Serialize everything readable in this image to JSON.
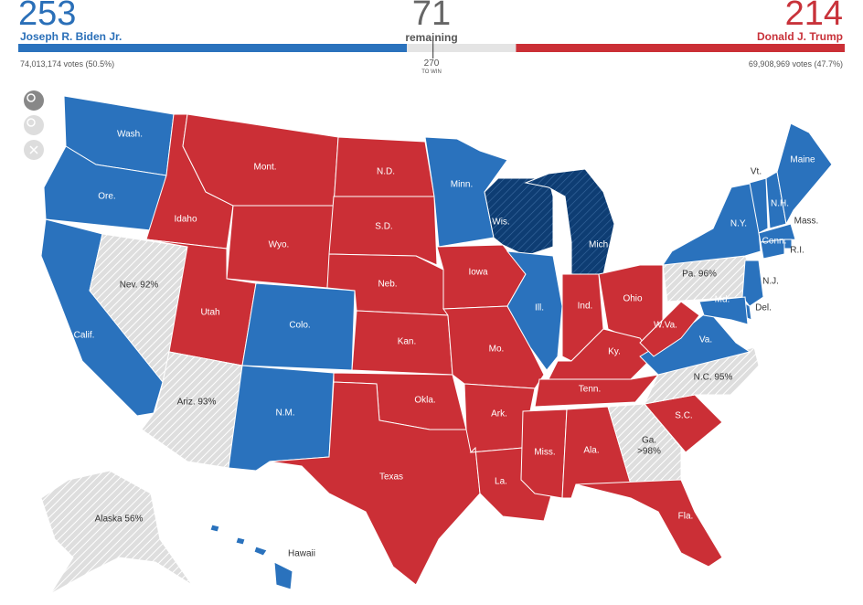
{
  "header": {
    "biden": {
      "electoral": 253,
      "name": "Joseph R. Biden Jr.",
      "votes": "74,013,174 votes (50.5%)"
    },
    "remaining": {
      "electoral": 71,
      "label": "remaining"
    },
    "trump": {
      "electoral": 214,
      "name": "Donald J. Trump",
      "votes": "69,908,969 votes (47.7%)"
    },
    "to_win": {
      "value": 270,
      "label": "TO WIN"
    }
  },
  "colors": {
    "biden": "#2a72bd",
    "trump": "#cb2f36",
    "uncalled": "#dedede",
    "biden-new": "#0e3d73"
  },
  "states": [
    {
      "name": "Wash.",
      "status": "biden"
    },
    {
      "name": "Ore.",
      "status": "biden"
    },
    {
      "name": "Calif.",
      "status": "biden"
    },
    {
      "name": "Nev. 92%",
      "status": "uncalled"
    },
    {
      "name": "Idaho",
      "status": "trump"
    },
    {
      "name": "Mont.",
      "status": "trump"
    },
    {
      "name": "Wyo.",
      "status": "trump"
    },
    {
      "name": "Utah",
      "status": "trump"
    },
    {
      "name": "Ariz. 93%",
      "status": "uncalled"
    },
    {
      "name": "Colo.",
      "status": "biden"
    },
    {
      "name": "N.M.",
      "status": "biden"
    },
    {
      "name": "N.D.",
      "status": "trump"
    },
    {
      "name": "S.D.",
      "status": "trump"
    },
    {
      "name": "Neb.",
      "status": "trump"
    },
    {
      "name": "Kan.",
      "status": "trump"
    },
    {
      "name": "Okla.",
      "status": "trump"
    },
    {
      "name": "Texas",
      "status": "trump"
    },
    {
      "name": "Minn.",
      "status": "biden"
    },
    {
      "name": "Iowa",
      "status": "trump"
    },
    {
      "name": "Mo.",
      "status": "trump"
    },
    {
      "name": "Ark.",
      "status": "trump"
    },
    {
      "name": "La.",
      "status": "trump"
    },
    {
      "name": "Wis.",
      "status": "biden-new"
    },
    {
      "name": "Ill.",
      "status": "biden"
    },
    {
      "name": "Mich.",
      "status": "biden-new"
    },
    {
      "name": "Ind.",
      "status": "trump"
    },
    {
      "name": "Ohio",
      "status": "trump"
    },
    {
      "name": "Ky.",
      "status": "trump"
    },
    {
      "name": "Tenn.",
      "status": "trump"
    },
    {
      "name": "Miss.",
      "status": "trump"
    },
    {
      "name": "Ala.",
      "status": "trump"
    },
    {
      "name": "Ga.",
      "sub": ">98%",
      "status": "uncalled"
    },
    {
      "name": "Fla.",
      "status": "trump"
    },
    {
      "name": "S.C.",
      "status": "trump"
    },
    {
      "name": "N.C. 95%",
      "status": "uncalled"
    },
    {
      "name": "Va.",
      "status": "biden"
    },
    {
      "name": "W.Va.",
      "status": "trump"
    },
    {
      "name": "Pa. 96%",
      "status": "uncalled"
    },
    {
      "name": "N.Y.",
      "status": "biden"
    },
    {
      "name": "N.J.",
      "status": "biden"
    },
    {
      "name": "Del.",
      "status": "biden"
    },
    {
      "name": "Md.",
      "status": "biden"
    },
    {
      "name": "Vt.",
      "status": "biden"
    },
    {
      "name": "N.H.",
      "status": "biden"
    },
    {
      "name": "Maine",
      "status": "biden"
    },
    {
      "name": "Mass.",
      "status": "biden"
    },
    {
      "name": "R.I.",
      "status": "biden"
    },
    {
      "name": "Conn.",
      "status": "biden"
    },
    {
      "name": "Alaska 56%",
      "status": "uncalled"
    },
    {
      "name": "Hawaii",
      "status": "biden"
    }
  ]
}
